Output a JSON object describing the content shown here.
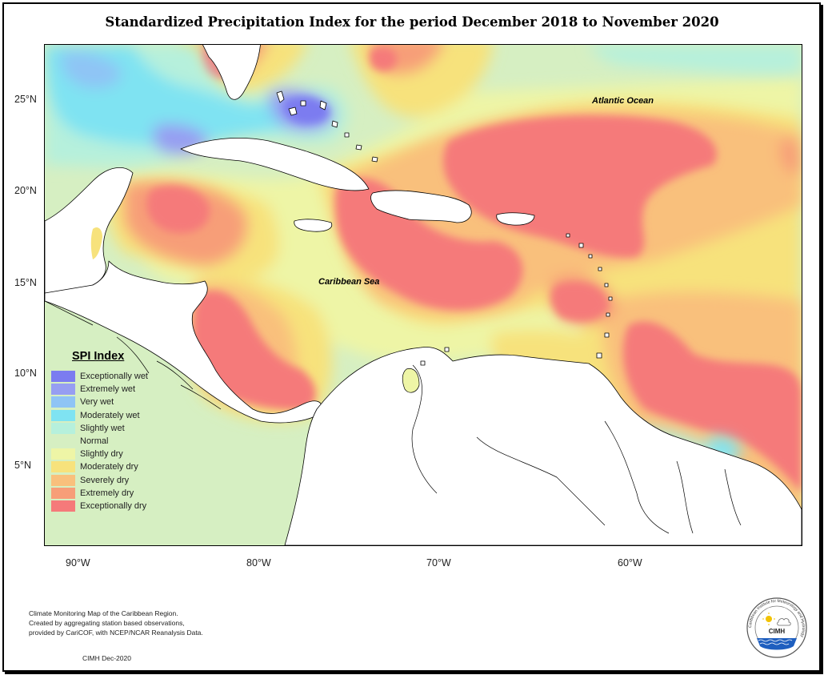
{
  "title": "Standardized Precipitation Index for the period December 2018 to November 2020",
  "y_axis_labels": [
    "25°N",
    "20°N",
    "15°N",
    "10°N",
    "5°N"
  ],
  "x_axis_labels": [
    "90°W",
    "80°W",
    "70°W",
    "60°W"
  ],
  "ocean_labels": {
    "atlantic": "Atlantic Ocean",
    "caribbean": "Caribbean Sea"
  },
  "legend": {
    "title": "SPI Index",
    "items": [
      {
        "label": "Exceptionally wet",
        "color": "#7b7cf0"
      },
      {
        "label": "Extremely wet",
        "color": "#969ef2"
      },
      {
        "label": "Very wet",
        "color": "#8fc4f5"
      },
      {
        "label": "Moderately wet",
        "color": "#7fe3f2"
      },
      {
        "label": "Slightly wet",
        "color": "#b6f0dc"
      },
      {
        "label": "Normal",
        "color": "#d6efc2"
      },
      {
        "label": "Slightly dry",
        "color": "#eef5a6"
      },
      {
        "label": "Moderately dry",
        "color": "#f7e27c"
      },
      {
        "label": "Severely dry",
        "color": "#f9c07c"
      },
      {
        "label": "Extremely dry",
        "color": "#f79e78"
      },
      {
        "label": "Exceptionally dry",
        "color": "#f57a7a"
      }
    ]
  },
  "credits": {
    "line1": "Climate Monitoring Map of the Caribbean Region.",
    "line2": "Created by aggregating station based observations,",
    "line3": "provided by CariCOF, with NCEP/NCAR Reanalysis Data.",
    "date": "CIMH Dec-2020"
  },
  "logo": {
    "text": "CIMH",
    "ring_text": "Caribbean Institute for Meteorology and Hydrology"
  }
}
